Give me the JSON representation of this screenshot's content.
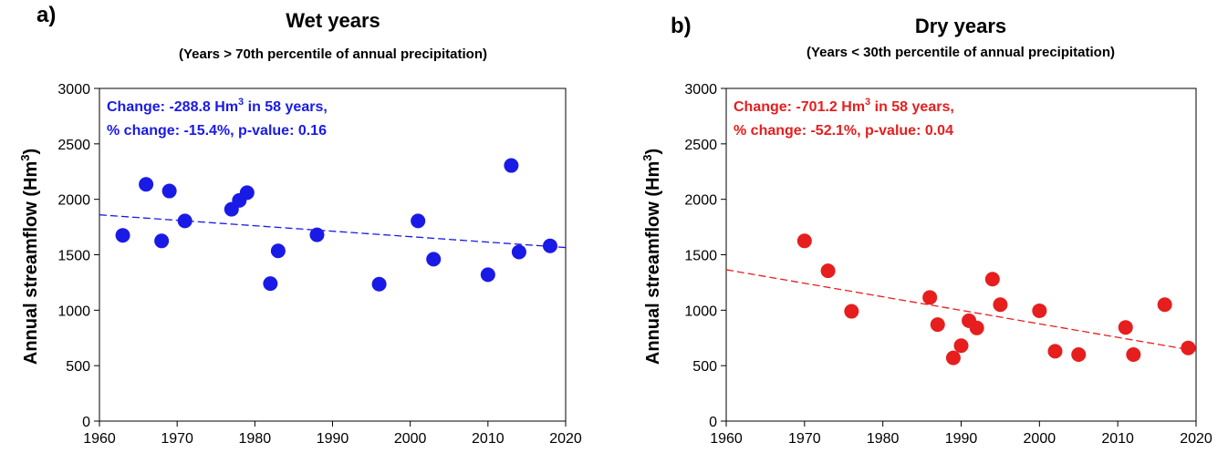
{
  "chart_data": [
    {
      "type": "scatter",
      "panel_label": "a)",
      "title": "Wet years",
      "subtitle": "(Years > 70th percentile of annual precipitation)",
      "ylabel": [
        "Annual streamflow (Hm",
        "3",
        ")"
      ],
      "annotation": {
        "line1": [
          "Change: -288.8 Hm",
          "3",
          " in 58 years,"
        ],
        "line2": "% change: -15.4%, p-value: 0.16"
      },
      "color": "#1a1ae6",
      "x": [
        1963,
        1966,
        1968,
        1969,
        1971,
        1977,
        1978,
        1979,
        1982,
        1983,
        1988,
        1996,
        2001,
        2003,
        2010,
        2013,
        2014,
        2018
      ],
      "values": [
        1675,
        2135,
        1625,
        2075,
        1805,
        1910,
        1990,
        2060,
        1240,
        1535,
        1680,
        1235,
        1805,
        1460,
        1320,
        2305,
        1525,
        1580
      ],
      "trend": {
        "x": [
          1960,
          2020
        ],
        "values": [
          1860,
          1565
        ]
      },
      "xlim": [
        1960,
        2020
      ],
      "xticks": [
        1960,
        1970,
        1980,
        1990,
        2000,
        2010,
        2020
      ],
      "ylim": [
        0,
        3000
      ],
      "yticks": [
        0,
        500,
        1000,
        1500,
        2000,
        2500,
        3000
      ]
    },
    {
      "type": "scatter",
      "panel_label": "b)",
      "title": "Dry years",
      "subtitle": "(Years < 30th percentile of annual precipitation)",
      "ylabel": [
        "Annual streamflow (Hm",
        "3",
        ")"
      ],
      "annotation": {
        "line1": [
          "Change: -701.2 Hm",
          "3",
          " in 58 years,"
        ],
        "line2": "% change: -52.1%, p-value: 0.04"
      },
      "color": "#e61e1e",
      "x": [
        1970,
        1973,
        1976,
        1986,
        1987,
        1989,
        1990,
        1991,
        1992,
        1994,
        1995,
        2000,
        2002,
        2005,
        2011,
        2012,
        2016,
        2019
      ],
      "values": [
        1625,
        1355,
        990,
        1115,
        870,
        570,
        680,
        905,
        840,
        1280,
        1050,
        995,
        630,
        600,
        845,
        600,
        1050,
        660
      ],
      "trend": {
        "x": [
          1960,
          2020
        ],
        "values": [
          1365,
          633
        ]
      },
      "xlim": [
        1960,
        2020
      ],
      "xticks": [
        1960,
        1970,
        1980,
        1990,
        2000,
        2010,
        2020
      ],
      "ylim": [
        0,
        3000
      ],
      "yticks": [
        0,
        500,
        1000,
        1500,
        2000,
        2500,
        3000
      ]
    }
  ]
}
